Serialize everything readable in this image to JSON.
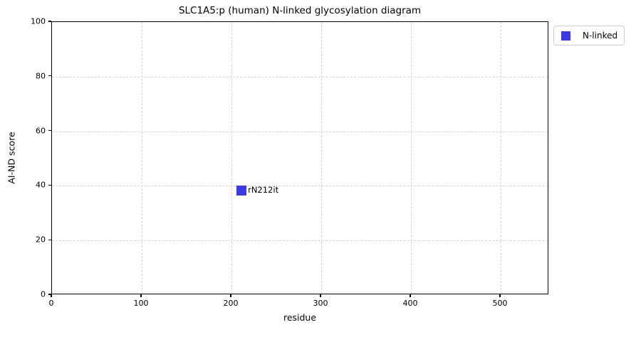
{
  "page": {
    "background": "#ffffff"
  },
  "chart_data": {
    "type": "scatter",
    "title": "SLC1A5:p (human) N-linked glycosylation diagram",
    "xlabel": "residue",
    "ylabel": "AI-ND score",
    "xlim": [
      0,
      554
    ],
    "ylim": [
      0,
      100
    ],
    "xticks": [
      0,
      100,
      200,
      300,
      400,
      500
    ],
    "yticks": [
      0,
      20,
      40,
      60,
      80,
      100
    ],
    "grid": {
      "on": true,
      "style": "dashed",
      "color": "#d2d2d2"
    },
    "axes_color": "#000000",
    "legend": {
      "position": "outside-upper-right",
      "entries": [
        {
          "label": "N-linked",
          "color": "#3b3be1",
          "marker": "square"
        }
      ]
    },
    "series": [
      {
        "name": "N-linked",
        "color": "#3b3be1",
        "marker": "square",
        "marker_size": 14,
        "points": [
          {
            "x": 212,
            "y": 38,
            "label": "rN212it"
          }
        ]
      }
    ]
  }
}
